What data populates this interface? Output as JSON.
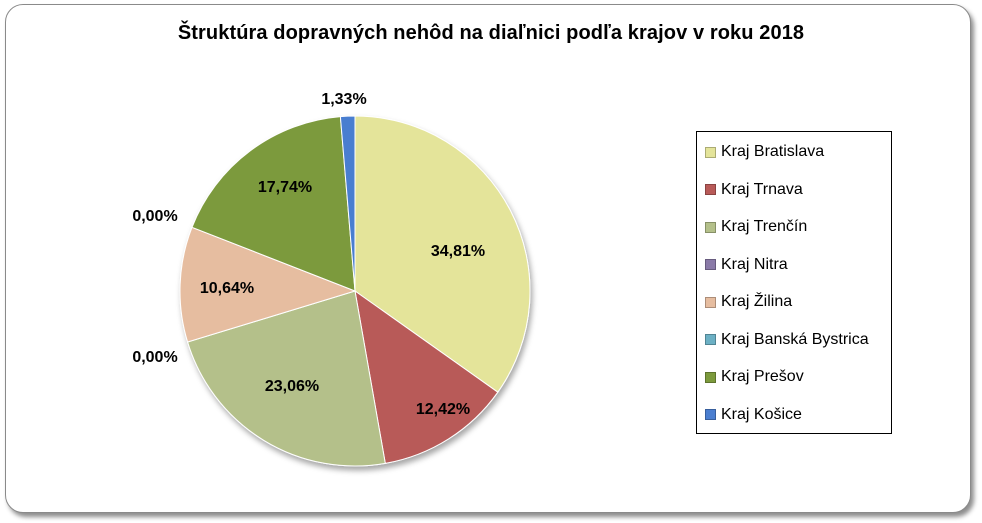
{
  "chart_data": {
    "type": "pie",
    "title": "Štruktúra dopravných nehôd na diaľnici podľa krajov v roku 2018",
    "legend_position": "right",
    "slices": [
      {
        "name": "Kraj Bratislava",
        "value": 34.81,
        "label": "34,81%",
        "color": "#e4e49a"
      },
      {
        "name": "Kraj Trnava",
        "value": 12.42,
        "label": "12,42%",
        "color": "#b85a58"
      },
      {
        "name": "Kraj Trenčín",
        "value": 23.06,
        "label": "23,06%",
        "color": "#b4c08a"
      },
      {
        "name": "Kraj Nitra",
        "value": 0.0,
        "label": "0,00%",
        "color": "#8a7aa8"
      },
      {
        "name": "Kraj Žilina",
        "value": 10.64,
        "label": "10,64%",
        "color": "#e6bda0"
      },
      {
        "name": "Kraj Banská Bystrica",
        "value": 0.0,
        "label": "0,00%",
        "color": "#6cb0c4"
      },
      {
        "name": "Kraj Prešov",
        "value": 17.74,
        "label": "17,74%",
        "color": "#7c9a3c"
      },
      {
        "name": "Kraj Košice",
        "value": 1.33,
        "label": "1,33%",
        "color": "#4a7ed0"
      }
    ]
  }
}
